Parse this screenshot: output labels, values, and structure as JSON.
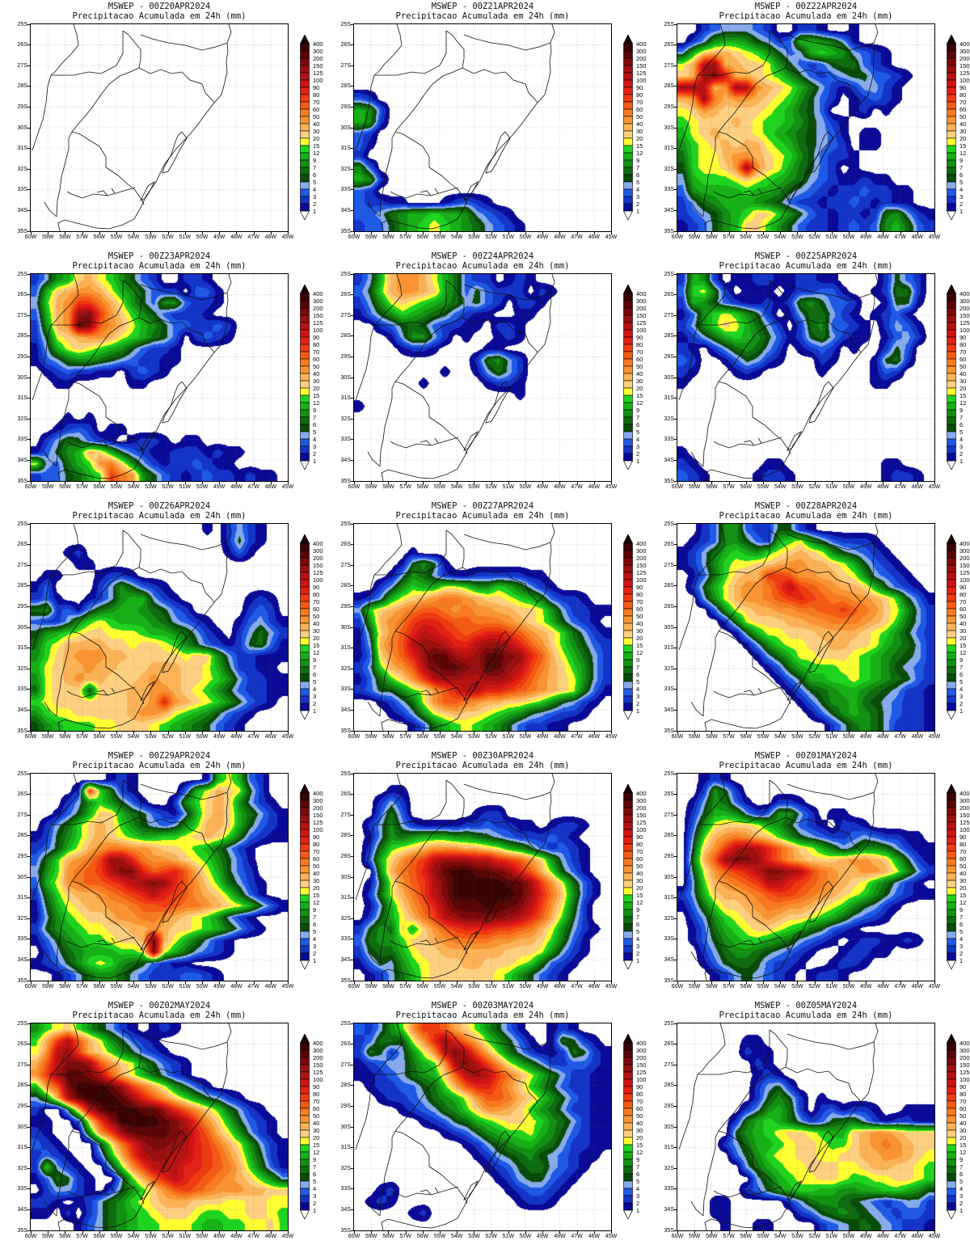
{
  "chart_data": {
    "type": "heatmap",
    "subtitle": "Precipitacao Acumulada em 24h (mm)",
    "x": {
      "ticks": [
        "60W",
        "59W",
        "58W",
        "57W",
        "56W",
        "55W",
        "54W",
        "53W",
        "52W",
        "51W",
        "50W",
        "49W",
        "48W",
        "47W",
        "46W",
        "45W"
      ],
      "range": [
        60,
        45
      ]
    },
    "y": {
      "ticks": [
        "25S",
        "26S",
        "27S",
        "28S",
        "29S",
        "30S",
        "31S",
        "32S",
        "33S",
        "34S",
        "35S"
      ],
      "range": [
        25,
        35
      ]
    },
    "colorbar_labels": [
      "400",
      "300",
      "200",
      "150",
      "125",
      "100",
      "90",
      "80",
      "70",
      "60",
      "50",
      "40",
      "30",
      "20",
      "15",
      "12",
      "9",
      "7",
      "6",
      "5",
      "4",
      "3",
      "2",
      "1"
    ],
    "levels": [
      1,
      2,
      3,
      4,
      5,
      6,
      7,
      9,
      12,
      15,
      20,
      30,
      40,
      50,
      60,
      70,
      80,
      90,
      100,
      125,
      150,
      200,
      300,
      400
    ],
    "encoding": ".123456789abcdefghijklmn",
    "palette": [
      "#0a0a96",
      "#1434c8",
      "#1e5ae6",
      "#87aaea",
      "#0a4b0a",
      "#0f6b0f",
      "#129012",
      "#17b017",
      "#1fd41f",
      "#ffff32",
      "#fdd081",
      "#fcb357",
      "#fa9433",
      "#f87a20",
      "#f55a14",
      "#ef3b10",
      "#e32114",
      "#d01414",
      "#b61212",
      "#9b0f0f",
      "#7d0a0a",
      "#5a0606",
      "#3a0303"
    ],
    "over_color": "#1c0101",
    "under_color": "#ffffff",
    "panels": [
      {
        "title": "MSWEP - 00Z20APR2024",
        "field": [
          "........................",
          "........................",
          "........................",
          "........................",
          "........................",
          "........................",
          "........................",
          "........................",
          "........................",
          "........................",
          "........................",
          "........................",
          "........................",
          "........................",
          "........................",
          "........................",
          "........................",
          "........................"
        ]
      },
      {
        "title": "MSWEP - 00Z21APR2024",
        "field": [
          "........................",
          "........................",
          "........................",
          "........................",
          "........................",
          "........................",
          "32......................",
          "873.....................",
          "872.....................",
          "32......................",
          "31......................",
          "2.......................",
          "73......................",
          "872.....................",
          "32......................",
          "32211...12321...........",
          "334678898874321.........",
          "2335789a98764321........"
        ]
      },
      {
        "title": "MSWEP - 00Z22APR2024",
        "field": [
          "..2344432..221..1.......",
          ".2478875423887641.......",
          "48bccba9753489874321....",
          "acjkccbba75323566321....",
          "bckliccba9753234553321..",
          "kkjcdkjdcba8642124421...",
          "cdkecddcba97532.12321...",
          "abdcbbbba98653..12.1....",
          "9abbbcba99875421........",
          "8abcbbba98765431.11.....",
          "79abcbcca9865432.11.....",
          "69aacddcba9753221.......",
          "59aabdkdba86532.1.......",
          "48999aba987643211211....",
          "3788889887543212232211..",
          "2467888765322122321211..",
          "2345789bb975321221267421",
          "123578bb9753221232378632"
        ]
      },
      {
        "title": "MSWEP - 00Z23APR2024",
        "field": [
          "2478bca97532..221.......",
          "38bcddca875322.331......",
          "49cdggeca753773221......",
          "38cdklgdb97532221.......",
          "27cdmlfdca875332232.....",
          "25abcddca98653.2321.....",
          "148aba98753221..........",
          "13467765432211..........",
          ".1232211.2321...........",
          "..11.....11.............",
          "........................",
          "........................",
          "...1.1..................",
          "..1232.11...............",
          ".2465321.1221.11........",
          "13578cb8532112221211....",
          "a43689deb7421223211.....",
          "2335689ged7532123221211."
        ]
      },
      {
        "title": "MSWEP - 00Z24APR2024",
        "field": [
          "248cddca86322.121.......",
          "359cddcb86353222.21.....",
          "247aba98764532.221......",
          "1357987653211..11.......",
          "..2356532211.221........",
          "...147742.1..121........",
          "....1221....11..........",
          "...........26742........",
          "........1..14642........",
          "......1.....1221........",
          "...............1........",
          "1.......................",
          "........................",
          "........................",
          "........................",
          "........................",
          "........................",
          "........................"
        ]
      },
      {
        "title": "MSWEP - 00Z25APR2024",
        "field": [
          "2872.1122112211....2532.",
          "39a62.111.122331..12662.",
          "28753211212675332..1551.",
          "1379a9752.1466421.1231..",
          "2479ba8642.2673321.2431.",
          "124689875312564211.1342.",
          "21.2467642.1232.1..253..",
          "32..135421...21...1562..",
          "21...121.....1....132...",
          "1.................11....",
          "........................",
          "........................",
          "........................",
          "........................",
          "........................",
          "1.......................",
          "21......11.........11...",
          "321....1221........1221."
        ]
      },
      {
        "title": "MSWEP - 00Z26APR2024",
        "field": [
          "................1.2421..",
          "..................2521..",
          "...12.............131...",
          "....11..................",
          ".11...1221..............",
          "13....2475321...........",
          "231..124788421......121.",
          "672314678876532.....232.",
          "322479a9888764321..13421",
          "5789abbaaa98876421.24642",
          "69accccbbabba97532125631",
          "79bcdddccbbbbbabb7422111",
          "8abccdccbbbcccbba852211.",
          "7abcdccbbbcdccbba9742211",
          "6abbb5bbbccddcba97532211",
          "9abbbbbbbccdhdcba975321.",
          "79aabbbbbcddca9875321...",
          "578999aabbba98765321...."
        ]
      },
      {
        "title": "MSWEP - 00Z27APR2024",
        "field": [
          "........................",
          "........................",
          ".....1..................",
          "....15751...............",
          "...147642112222211......",
          "..247988aa977986421.....",
          "1248abcdeedcbba9863221..",
          "49bcdeffededdccbba742211",
          "27cdeghhgffeeedcba85321.",
          "15bdfhjihgfghhgfdcb96421",
          "14cefjkkjhhjkkjhfdb97532",
          "13bdfhkmmkjkmmlkhfca8642",
          "249cdfjlmmlkmmkjgecb9742",
          "1369bdgjkkjjkkjhfdcba742",
          "235579adfhjjhhgfedcba631",
          "..1246adffedccbba975421.",
          "...1247abcbba987543221..",
          ".....13689a987532211...."
        ]
      },
      {
        "title": "MSWEP - 00Z28APR2024",
        "field": [
          "..23773225521...........",
          ".1237753289a7532221.....",
          "124689879abcba754321....",
          "12479aabbcddccba85321...",
          ".1369bccggfddccba74321..",
          ".258acddegjgfedccb85321.",
          "..47acddefghgfeeddcb9531",
          "...37abccddeeffgfedba742",
          "....26abbbccddeeedcb9642",
          ".....158aabbbccccba97532",
          "......1479aabbccbba87642",
          ".......1468aabbba9876542",
          "........1368999aa9875432",
          ".........1358899a9876532",
          "..........13567887654221",
          "...........1357786543221",
          "............135787643221",
          "..............2467642221"
        ]
      },
      {
        "title": "MSWEP - 00Z29APR2024",
        "field": [
          ".......121......18a832..",
          "....2g9621....38acba52..",
          "...24797531..279bcb7421.",
          "..1358bb86532148bcb86421",
          ".2469bcb97543479ccb85321",
          "12579bcba98899abcb963211",
          "2358acdeeddcbba986421...",
          "369cdegkkheddcba97531...",
          "479defgjllhfghfca8532...",
          "38adeffghjklkhfdb96421..",
          "269bccdefghjhgfdcb9631..",
          "158abccddeffgfeedcba8531",
          "1479abbcddeedcba97421...",
          "25789aabbccdcbba986421..",
          "1357899abbcmca86421.....",
          ".246788899ala864321.....",
          "123579a97653211.........",
          "..1246776432223321......"
        ]
      },
      {
        "title": "MSWEP - 00Z30APR2024",
        "field": [
          "........................",
          "...11...................",
          "..242...................",
          "..363......122..........",
          ".2474211112232211.1221..",
          ".14767888776543222321...",
          ".269abcdddccba87532321..",
          ".38bdfgjkkkjjhgfdb7421..",
          "..7cefhkmnnmmlkhfc9531..",
          ".15adfgjlnnnnnmmkgda631.",
          ".26acegjlnnnnnnmkheb731.",
          ".148bdfhkmmmnmmljgda62..",
          ".258acegjkllllkjhfc952..",
          "2576b8bdfghhhggfeca7421.",
          "36779bbcdeeeeddccb9631..",
          "25668abbccccccbbba7421..",
          "135479abbbccbbba96321...",
          ".12468abbbbbba975321...."
        ]
      },
      {
        "title": "MSWEP - 00Z01MAY2024",
        "field": [
          "..121...................",
          "..2752..................",
          ".147631..221............",
          ".258874237742.11........",
          ".37abbba875321.221......",
          ".49cdedcb97543223432211.",
          ".5bdgjkjhfdba86457764211",
          ".6cfkllkhfdcbbbcddcb8521",
          ".5adfghjllkjgedccddca742",
          ".49cdefgjjhgfedcba86421.",
          "248bccdefggfedcba9753211",
          "1369bbcdeeddcba975421...",
          ".2479abcdcbba9864321....",
          ".13689abba9865321.......",
          ".13578998764321.1221121.",
          "..24677654321..12211....",
          "..1356653221..1221......",
          "...12454321.1221........"
        ]
      },
      {
        "title": "MSWEP - 00Z02MAY2024",
        "field": [
          "79ab975421.121..........",
          "9cgjfca75321............",
          "adjkgcb975321...........",
          "cfjllkfdba75321.........",
          "dgkmmljfca86421.........",
          "8dflnnnmkgeca7531.......",
          "47cjmnnnmkhfdb975421....",
          "2..5cjmnnnmmkhfdb96421..",
          "11..3bgknnnnmljgdb85321.",
          "21...7dgkmmmmlkhfca7421.",
          "321...5aehkllkjhgeca7421",
          "2321..38cgjkkjjhgfdb8521",
          "29421..49dgjjjhhgfec9631",
          "136521..49cfhjhgfedcb974",
          ".24421.2579bdfgfedddccbb",
          "221.124679abcccbbbaabbaa",
          "11.2.246789abbba99aabba9",
          "....13467899aaa98899aab9"
        ]
      },
      {
        "title": "MSWEP - 00Z03MAY2024",
        "field": [
          "32479dggfcb97531..121...",
          "23665adhkhec97531.16521.",
          "265247adjljfc96421126521",
          "12344689dkljgda864223321",
          "11234678bfjkjgeca8642211",
          ".12233569cfhhfdb97532211",
          "..12234678adffecb9753211",
          "....1234679bddcb97642211",
          "......1235689abba9764211",
          "........12357899a8753211",
          "..........12467887642211",
          "...........124567543211.",
          "............1235664321..",
          ".............12455321...",
          "..12..........123321....",
          ".121...........1221.....",
          ".....12.................",
          "........................"
        ]
      },
      {
        "title": "MSWEP - 00Z05MAY2024",
        "field": [
          "........................",
          "......11................",
          "......211...............",
          ".......21...............",
          ".......121..............",
          ".......2452.............",
          ".......25752.1..........",
          "......247862.231221..111",
          ".....2689864235664212211",
          ".....5789abba988bcddcbbb",
          "....246889abba99bcdedcbb",
          ".....3579aabbaabbccddcba",
          "......4689aabbbaabccbba9",
          ".......4689aabba99aabba9",
          "......235789988778899875",
          "...11.....24677654323442",
          "...11......2356765432332",
          "....1..11....23456543221"
        ]
      }
    ]
  }
}
